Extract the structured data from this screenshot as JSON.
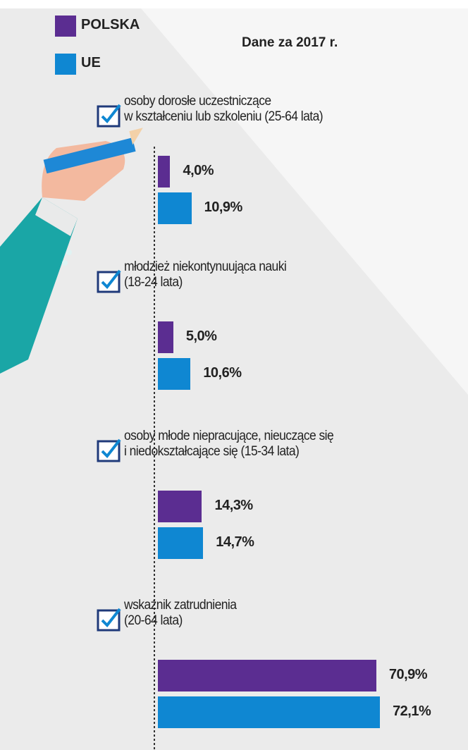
{
  "chart_data": {
    "type": "bar",
    "subtitle": "Dane za 2017 r.",
    "categories": [
      "osoby dorosłe uczestniczące\nw kształceniu lub szkoleniu (25-64 lata)",
      "młodzież niekontynuująca nauki\n(18-24 lata)",
      "osoby młode niepracujące, nieuczące się\ni niedokształcające się (15-34 lata)",
      "wskaźnik zatrudnienia\n(20-64 lata)"
    ],
    "series": [
      {
        "name": "POLSKA",
        "color": "#5b2d91",
        "values": [
          4.0,
          5.0,
          14.3,
          70.9
        ],
        "value_labels": [
          "4,0%",
          "5,0%",
          "14,3%",
          "70,9%"
        ]
      },
      {
        "name": "UE",
        "color": "#0f87d2",
        "values": [
          10.9,
          10.6,
          14.7,
          72.1
        ],
        "value_labels": [
          "10,9%",
          "10,6%",
          "14,7%",
          "72,1%"
        ]
      }
    ]
  }
}
